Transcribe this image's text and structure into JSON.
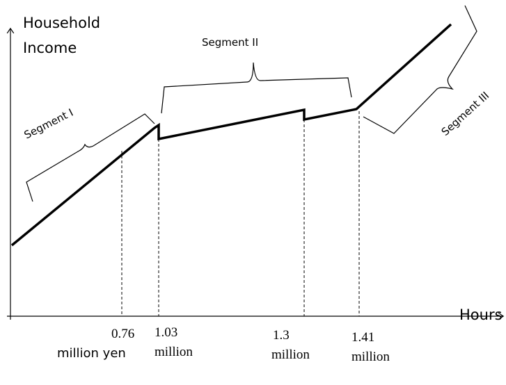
{
  "axes": {
    "y_label": [
      "Household",
      "Income"
    ],
    "x_label": "Hours"
  },
  "thresholds": [
    {
      "value": "0.76",
      "unit": "million yen"
    },
    {
      "value": "1.03",
      "unit": "million"
    },
    {
      "value": "1.3",
      "unit": "million"
    },
    {
      "value": "1.41",
      "unit": "million"
    }
  ],
  "segments": [
    "Segment I",
    "Segment II",
    "Segment III"
  ]
}
